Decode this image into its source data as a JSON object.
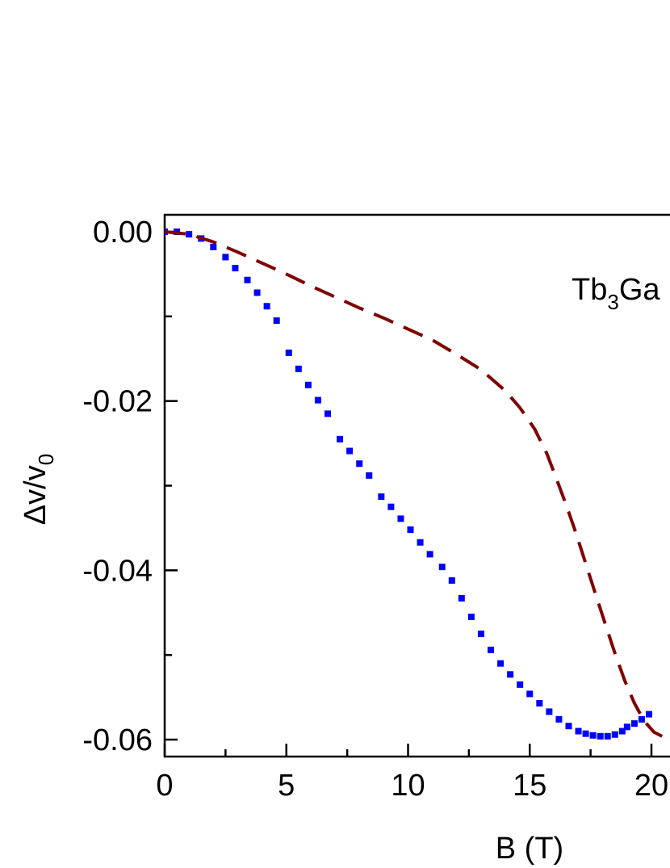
{
  "chart_data": {
    "type": "scatter",
    "xlabel": "B (T)",
    "ylabel_main": "Δv/v",
    "ylabel_sub": "0",
    "xlim": [
      0,
      21
    ],
    "ylim": [
      -0.062,
      0.002
    ],
    "x_major_ticks": [
      0,
      5,
      10,
      15,
      20
    ],
    "x_tick_labels": [
      "0",
      "5",
      "10",
      "15",
      "20"
    ],
    "x_minor_ticks": [
      2.5,
      7.5,
      12.5,
      17.5
    ],
    "y_major_ticks": [
      0.0,
      -0.02,
      -0.04,
      -0.06
    ],
    "y_tick_labels": [
      "0.00",
      "-0.02",
      "-0.04",
      "-0.06"
    ],
    "y_minor_ticks": [
      -0.01,
      -0.03,
      -0.05
    ],
    "annotation": {
      "main": "Tb",
      "sub": "3",
      "rest": "Ga"
    },
    "series": [
      {
        "style": "markers",
        "color": "#0000ff",
        "x": [
          0.0,
          0.5,
          1.0,
          1.5,
          2.0,
          2.5,
          2.9,
          3.4,
          3.8,
          4.2,
          4.6,
          5.1,
          5.5,
          5.9,
          6.3,
          6.7,
          7.2,
          7.6,
          8.0,
          8.4,
          8.9,
          9.3,
          9.7,
          10.1,
          10.5,
          10.9,
          11.4,
          11.8,
          12.2,
          12.6,
          13.0,
          13.4,
          13.8,
          14.2,
          14.6,
          15.0,
          15.4,
          15.8,
          16.2,
          16.6,
          17.0,
          17.3,
          17.6,
          17.9,
          18.2,
          18.5,
          18.8,
          19.0,
          19.3,
          19.6,
          19.9
        ],
        "y": [
          0.0,
          0.0,
          -0.0003,
          -0.0008,
          -0.0018,
          -0.003,
          -0.0043,
          -0.0057,
          -0.0072,
          -0.0088,
          -0.0105,
          -0.0143,
          -0.0162,
          -0.0181,
          -0.0199,
          -0.0215,
          -0.0245,
          -0.0259,
          -0.0274,
          -0.0288,
          -0.0313,
          -0.0325,
          -0.0339,
          -0.0352,
          -0.0367,
          -0.0381,
          -0.0396,
          -0.0412,
          -0.0433,
          -0.0455,
          -0.0475,
          -0.0494,
          -0.051,
          -0.0523,
          -0.0535,
          -0.0546,
          -0.0557,
          -0.0567,
          -0.0576,
          -0.0584,
          -0.059,
          -0.0593,
          -0.0595,
          -0.0596,
          -0.0596,
          -0.0594,
          -0.059,
          -0.0585,
          -0.0581,
          -0.0576,
          -0.057
        ]
      },
      {
        "style": "dashed",
        "color": "#800000",
        "x": [
          0.0,
          1.0,
          2.0,
          3.0,
          4.0,
          5.0,
          6.0,
          7.0,
          8.0,
          9.0,
          10.0,
          11.0,
          12.0,
          13.0,
          14.0,
          14.6,
          15.2,
          15.7,
          16.1,
          16.5,
          16.9,
          17.3,
          17.7,
          18.1,
          18.5,
          18.9,
          19.3,
          19.7,
          20.1,
          20.5,
          21.0
        ],
        "y": [
          0.0,
          -0.0003,
          -0.0012,
          -0.0024,
          -0.0037,
          -0.005,
          -0.0064,
          -0.0077,
          -0.009,
          -0.0102,
          -0.0115,
          -0.0128,
          -0.0145,
          -0.0163,
          -0.0188,
          -0.0208,
          -0.0233,
          -0.0262,
          -0.0292,
          -0.0323,
          -0.0356,
          -0.0392,
          -0.0428,
          -0.0463,
          -0.0498,
          -0.053,
          -0.0557,
          -0.0578,
          -0.0591,
          -0.0597,
          -0.06
        ]
      }
    ]
  }
}
